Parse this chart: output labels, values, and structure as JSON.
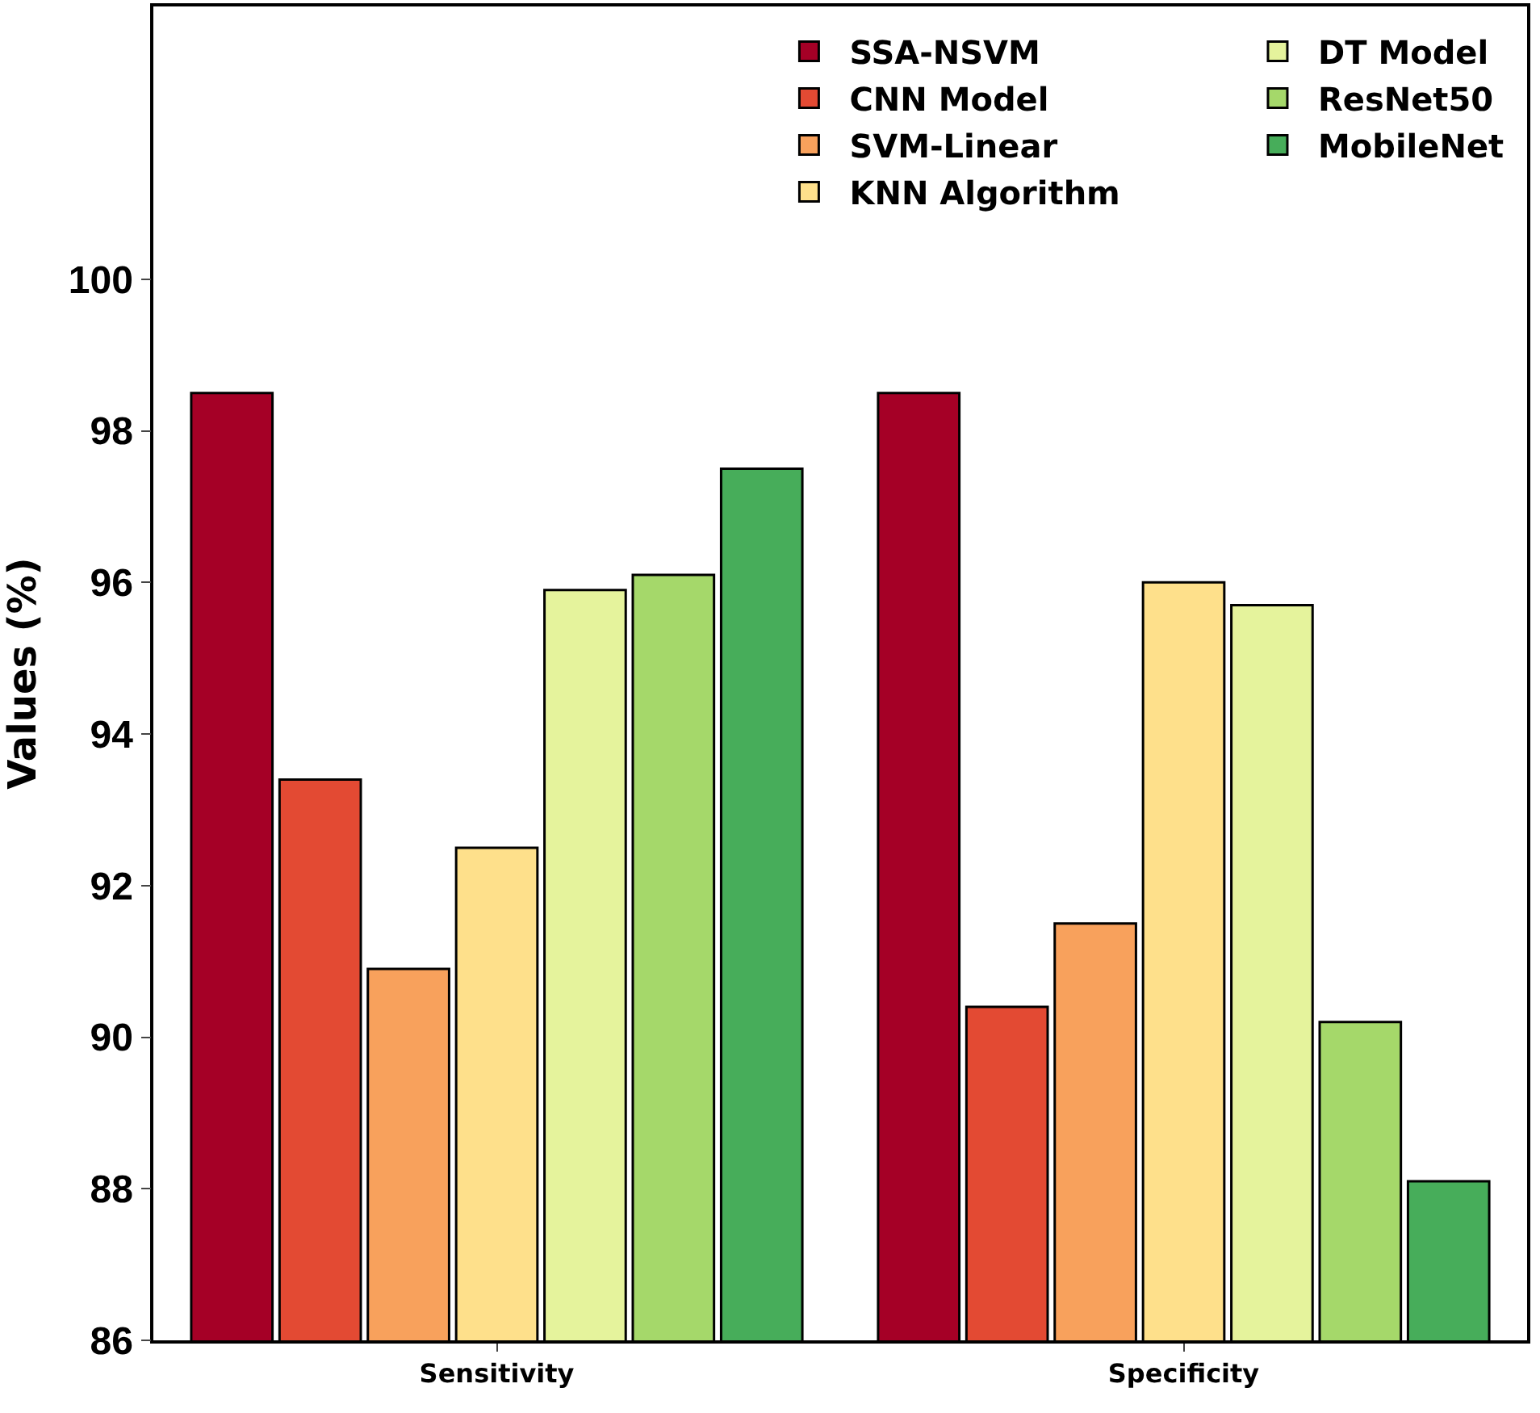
{
  "chart_data": {
    "type": "bar",
    "ylabel": "Values (%)",
    "categories": [
      "Sensitivity",
      "Specificity"
    ],
    "series": [
      {
        "name": "SSA-NSVM",
        "color": "#a50026",
        "values": [
          98.5,
          98.5
        ]
      },
      {
        "name": "CNN Model",
        "color": "#e34a33",
        "values": [
          93.4,
          90.4
        ]
      },
      {
        "name": "SVM-Linear",
        "color": "#f8a15c",
        "values": [
          90.9,
          91.5
        ]
      },
      {
        "name": "KNN Algorithm",
        "color": "#fee08b",
        "values": [
          92.5,
          96.0
        ]
      },
      {
        "name": "DT Model",
        "color": "#e5f39c",
        "values": [
          95.9,
          95.7
        ]
      },
      {
        "name": "ResNet50",
        "color": "#a5d86a",
        "values": [
          96.1,
          90.2
        ]
      },
      {
        "name": "MobileNet",
        "color": "#47ad5a",
        "values": [
          97.5,
          88.1
        ]
      }
    ],
    "ylim": [
      86,
      103.6
    ],
    "yticks": [
      86,
      88,
      90,
      92,
      94,
      96,
      98,
      100
    ],
    "legend": "top right"
  }
}
